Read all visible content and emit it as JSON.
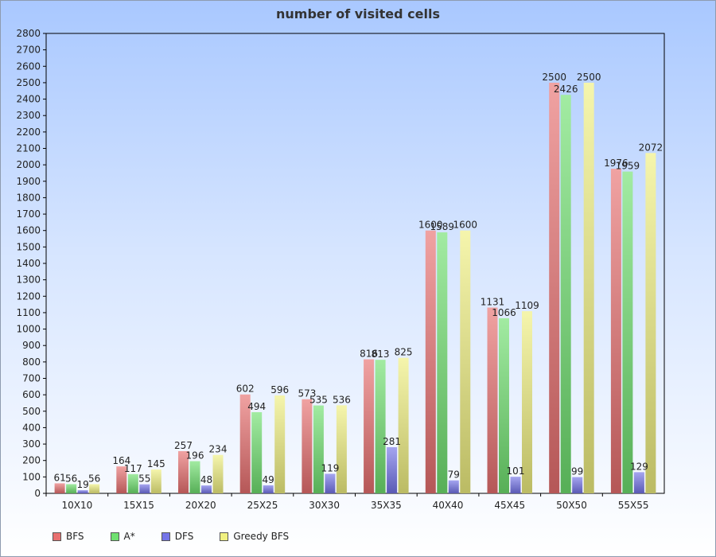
{
  "chart_data": {
    "type": "bar",
    "title": "number of visited cells",
    "xlabel": "",
    "ylabel": "",
    "ylim": [
      0,
      2800
    ],
    "ytick_step": 100,
    "grid": false,
    "legend_position": "bottom-left",
    "categories": [
      "10X10",
      "15X15",
      "20X20",
      "25X25",
      "30X30",
      "35X35",
      "40X40",
      "45X45",
      "50X50",
      "55X55"
    ],
    "series": [
      {
        "name": "BFS",
        "color": "#e87070",
        "values": [
          61,
          164,
          257,
          602,
          573,
          816,
          1600,
          1131,
          2500,
          1976
        ]
      },
      {
        "name": "A*",
        "color": "#70e070",
        "values": [
          56,
          117,
          196,
          494,
          535,
          813,
          1589,
          1066,
          2426,
          1959
        ]
      },
      {
        "name": "DFS",
        "color": "#7474e8",
        "values": [
          19,
          55,
          48,
          49,
          119,
          281,
          79,
          101,
          99,
          129
        ]
      },
      {
        "name": "Greedy BFS",
        "color": "#f0f080",
        "values": [
          56,
          145,
          234,
          596,
          536,
          825,
          1600,
          1109,
          2500,
          2072
        ]
      }
    ]
  }
}
